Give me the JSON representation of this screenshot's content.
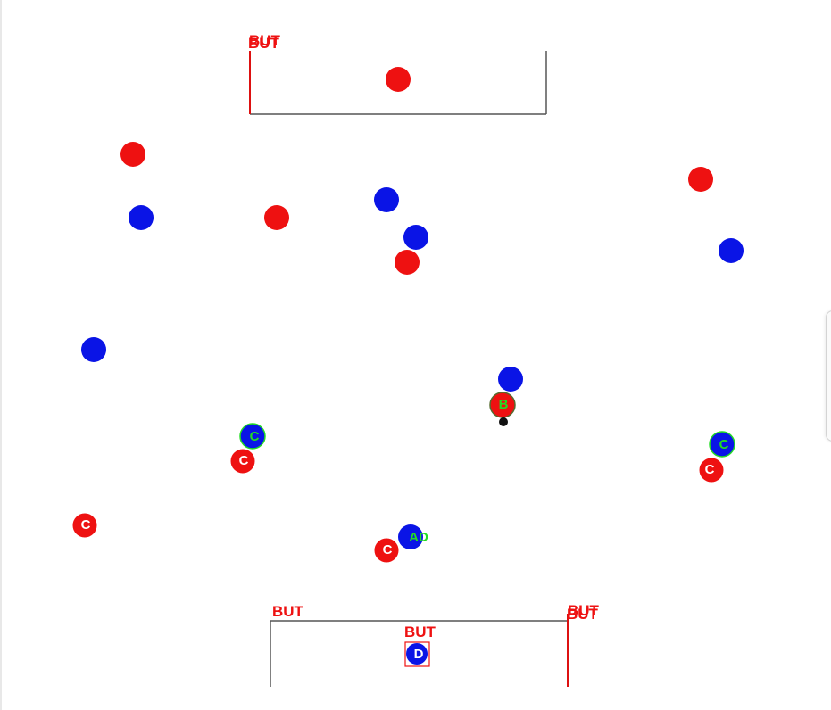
{
  "colors": {
    "team_red": "#ee1111",
    "team_blue": "#0a14e6",
    "label_red": "#ee1111",
    "label_green": "#22dd22",
    "label_white": "#ffffff",
    "goal_line": "#555555",
    "goal_post": "#dd1111",
    "ball": "#111111"
  },
  "goals": {
    "top": {
      "label": "BUT"
    },
    "bottom": {
      "label_left": "BUT",
      "label_center": "BUT",
      "label_right": "BUT"
    }
  },
  "players": {
    "red_top_keeper": {
      "team": "red",
      "label": ""
    },
    "red_1": {
      "team": "red",
      "label": ""
    },
    "red_2": {
      "team": "red",
      "label": ""
    },
    "red_3": {
      "team": "red",
      "label": ""
    },
    "red_4": {
      "team": "red",
      "label": ""
    },
    "blue_1": {
      "team": "blue",
      "label": ""
    },
    "blue_2": {
      "team": "blue",
      "label": ""
    },
    "blue_3": {
      "team": "blue",
      "label": ""
    },
    "blue_4": {
      "team": "blue",
      "label": ""
    },
    "blue_5": {
      "team": "blue",
      "label": ""
    },
    "blue_6": {
      "team": "blue",
      "label": ""
    },
    "red_b": {
      "team": "red",
      "label": "B"
    },
    "blue_c_left": {
      "team": "blue",
      "label": "C"
    },
    "red_c_left": {
      "team": "red",
      "label": "C"
    },
    "blue_c_right": {
      "team": "blue",
      "label": "C"
    },
    "red_c_right": {
      "team": "red",
      "label": "C"
    },
    "red_c_far_left": {
      "team": "red",
      "label": "C"
    },
    "red_c_center": {
      "team": "red",
      "label": "C"
    },
    "blue_ad": {
      "team": "blue",
      "label": "AD"
    },
    "blue_keeper_d": {
      "team": "blue",
      "label": "D"
    }
  }
}
